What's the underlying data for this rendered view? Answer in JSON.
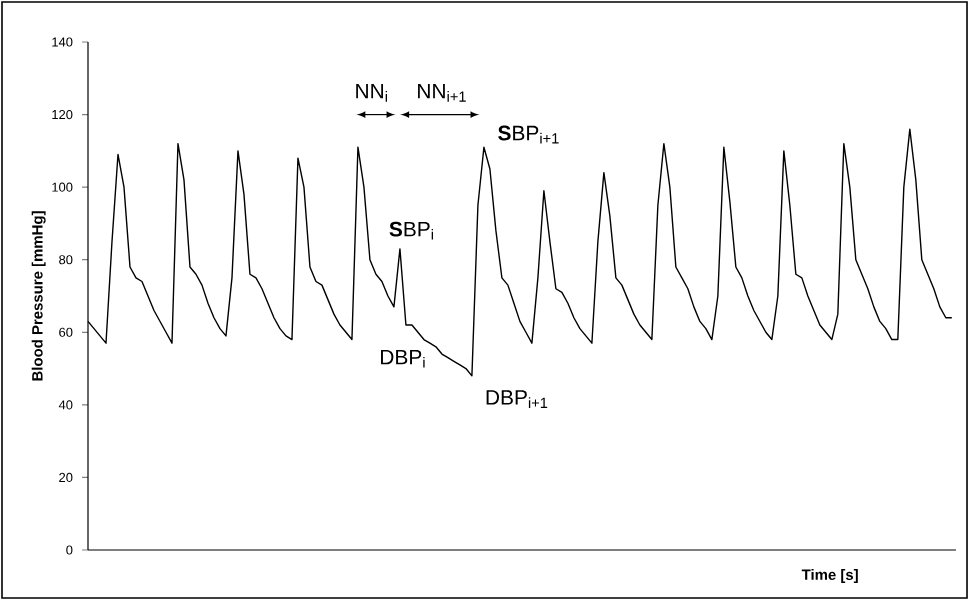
{
  "chart_data": {
    "type": "line",
    "xlabel": "Time [s]",
    "ylabel": "Blood Pressure [mmHg]",
    "categories": [
      null,
      null,
      null,
      null,
      null,
      null,
      null,
      null,
      null,
      null,
      null,
      null,
      null,
      null,
      null,
      null,
      null,
      null,
      null,
      null,
      null,
      null,
      null,
      null,
      null,
      null,
      null,
      null,
      null,
      null,
      null,
      null,
      null,
      null,
      null,
      null,
      null,
      null,
      null,
      null,
      null,
      null,
      null,
      null,
      null,
      null,
      null,
      null,
      null,
      null,
      null,
      null,
      null,
      null,
      null,
      null,
      null,
      null,
      null,
      null,
      null,
      null,
      null,
      null,
      null,
      null,
      null,
      null,
      null,
      null,
      null,
      null,
      null,
      null,
      null,
      null,
      null,
      null,
      null,
      null,
      null,
      null,
      null,
      null,
      null,
      null,
      null,
      null,
      null,
      null,
      null,
      null,
      null,
      null,
      null,
      null,
      null,
      null,
      null,
      null,
      null,
      null,
      null,
      null,
      null,
      null,
      null,
      null,
      null,
      null,
      null,
      null,
      null,
      null,
      null,
      null,
      null,
      null,
      null,
      null,
      null,
      null,
      null,
      null,
      null,
      null,
      null,
      null,
      null,
      null,
      null,
      null,
      null,
      null,
      null,
      null,
      null,
      null,
      null,
      null,
      null,
      null,
      null,
      null,
      null
    ],
    "values": [
      63,
      61,
      59,
      57,
      85,
      109,
      100,
      78,
      75,
      74,
      70,
      66,
      63,
      60,
      57,
      112,
      102,
      78,
      76,
      73,
      68,
      64,
      61,
      59,
      75,
      110,
      98,
      76,
      75,
      72,
      68,
      64,
      61,
      59,
      58,
      108,
      100,
      78,
      74,
      73,
      69,
      65,
      62,
      60,
      58,
      111,
      100,
      80,
      76,
      74,
      70,
      67,
      83,
      62,
      62,
      60,
      58,
      57,
      56,
      54,
      53,
      52,
      51,
      50,
      48,
      95,
      111,
      105,
      88,
      75,
      73,
      68,
      63,
      60,
      57,
      75,
      99,
      85,
      72,
      71,
      68,
      64,
      61,
      59,
      57,
      85,
      104,
      92,
      75,
      73,
      69,
      65,
      62,
      60,
      58,
      95,
      112,
      100,
      78,
      75,
      72,
      67,
      63,
      61,
      58,
      70,
      111,
      96,
      78,
      75,
      70,
      66,
      63,
      60,
      58,
      70,
      110,
      95,
      76,
      75,
      70,
      66,
      62,
      60,
      58,
      65,
      112,
      100,
      80,
      76,
      72,
      67,
      63,
      61,
      58,
      58,
      100,
      116,
      102,
      80,
      76,
      72,
      67,
      64,
      64
    ],
    "color": "#000000",
    "ylim": [
      0,
      140
    ],
    "yticks": [
      0,
      20,
      40,
      60,
      80,
      100,
      120,
      140
    ],
    "annotations": [
      "NN$_{i}$",
      "NN$_{i+1}$",
      "**S**BP$_{i}$",
      "**S**BP$_{i+1}$",
      "DBP$_{i}$",
      "DBP$_{i+1}$"
    ]
  }
}
